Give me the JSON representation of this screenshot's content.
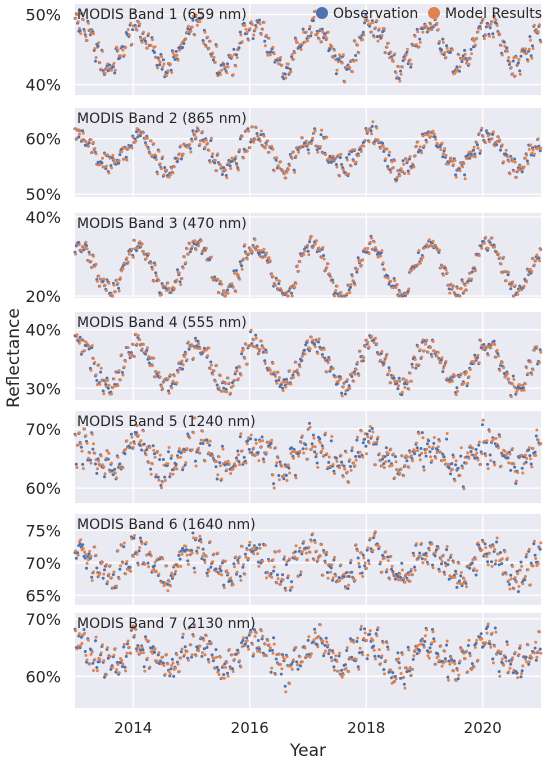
{
  "figure": {
    "ylabel": "Reflectance",
    "xlabel": "Year",
    "x_ticks": [
      "2014",
      "2016",
      "2018",
      "2020"
    ],
    "legend": {
      "placement": "top-right",
      "entries": [
        {
          "name": "Observation",
          "color": "#4c72b0"
        },
        {
          "name": "Model Results",
          "color": "#dd8452"
        }
      ]
    }
  },
  "chart_data": [
    {
      "type": "scatter",
      "title": "MODIS Band 1 (659 nm)",
      "ylim": [
        38.5,
        51.5
      ],
      "yticks": [
        40,
        50
      ],
      "yticklabels": [
        "40%",
        "50%"
      ],
      "xlim": [
        2013.0,
        2021.0
      ],
      "xticks": [
        2014,
        2016,
        2018,
        2020
      ],
      "center": 45.5,
      "amplitude": 3.0,
      "noise": 1.2,
      "series": [
        {
          "name": "Observation",
          "color": "#4c72b0"
        },
        {
          "name": "Model Results",
          "color": "#dd8452"
        }
      ]
    },
    {
      "type": "scatter",
      "title": "MODIS Band 2 (865 nm)",
      "ylim": [
        49.5,
        65.5
      ],
      "yticks": [
        50,
        60
      ],
      "yticklabels": [
        "50%",
        "60%"
      ],
      "xlim": [
        2013.0,
        2021.0
      ],
      "xticks": [
        2014,
        2016,
        2018,
        2020
      ],
      "center": 57.5,
      "amplitude": 3.0,
      "noise": 1.3,
      "series": [
        {
          "name": "Observation",
          "color": "#4c72b0"
        },
        {
          "name": "Model Results",
          "color": "#dd8452"
        }
      ]
    },
    {
      "type": "scatter",
      "title": "MODIS Band 3 (470 nm)",
      "ylim": [
        19.5,
        41.0
      ],
      "yticks": [
        20,
        40
      ],
      "yticklabels": [
        "20%",
        "40%"
      ],
      "xlim": [
        2013.0,
        2021.0
      ],
      "xticks": [
        2014,
        2016,
        2018,
        2020
      ],
      "center": 27.0,
      "amplitude": 6.0,
      "noise": 1.5,
      "series": [
        {
          "name": "Observation",
          "color": "#4c72b0"
        },
        {
          "name": "Model Results",
          "color": "#dd8452"
        }
      ]
    },
    {
      "type": "scatter",
      "title": "MODIS Band 4 (555 nm)",
      "ylim": [
        28.0,
        43.0
      ],
      "yticks": [
        30,
        40
      ],
      "yticklabels": [
        "30%",
        "40%"
      ],
      "xlim": [
        2013.0,
        2021.0
      ],
      "xticks": [
        2014,
        2016,
        2018,
        2020
      ],
      "center": 34.0,
      "amplitude": 3.5,
      "noise": 1.2,
      "series": [
        {
          "name": "Observation",
          "color": "#4c72b0"
        },
        {
          "name": "Model Results",
          "color": "#dd8452"
        }
      ]
    },
    {
      "type": "scatter",
      "title": "MODIS Band 5 (1240 nm)",
      "ylim": [
        57.5,
        73.0
      ],
      "yticks": [
        60,
        70
      ],
      "yticklabels": [
        "60%",
        "70%"
      ],
      "xlim": [
        2013.0,
        2021.0
      ],
      "xticks": [
        2014,
        2016,
        2018,
        2020
      ],
      "center": 65.5,
      "amplitude": 2.0,
      "noise": 2.0,
      "series": [
        {
          "name": "Observation",
          "color": "#4c72b0"
        },
        {
          "name": "Model Results",
          "color": "#dd8452"
        }
      ]
    },
    {
      "type": "scatter",
      "title": "MODIS Band 6 (1640 nm)",
      "ylim": [
        63.5,
        77.5
      ],
      "yticks": [
        65,
        70,
        75
      ],
      "yticklabels": [
        "65%",
        "70%",
        "75%"
      ],
      "xlim": [
        2013.0,
        2021.0
      ],
      "xticks": [
        2014,
        2016,
        2018,
        2020
      ],
      "center": 70.0,
      "amplitude": 1.8,
      "noise": 1.6,
      "series": [
        {
          "name": "Observation",
          "color": "#4c72b0"
        },
        {
          "name": "Model Results",
          "color": "#dd8452"
        }
      ]
    },
    {
      "type": "scatter",
      "title": "MODIS Band 7 (2130 nm)",
      "ylim": [
        54.5,
        71.0
      ],
      "yticks": [
        60,
        70
      ],
      "yticklabels": [
        "60%",
        "70%"
      ],
      "xlim": [
        2013.0,
        2021.0
      ],
      "xticks": [
        2014,
        2016,
        2018,
        2020
      ],
      "center": 64.0,
      "amplitude": 2.0,
      "noise": 2.0,
      "series": [
        {
          "name": "Observation",
          "color": "#4c72b0"
        },
        {
          "name": "Model Results",
          "color": "#dd8452"
        }
      ]
    }
  ]
}
